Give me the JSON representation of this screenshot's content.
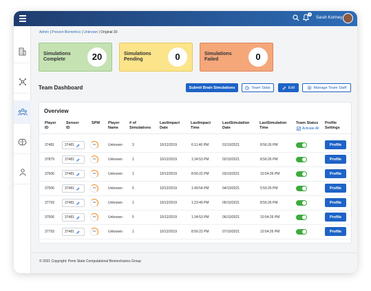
{
  "topbar": {
    "user_name": "Sarah Kortney",
    "notification_count": "5"
  },
  "sidebar": {
    "items": [
      {
        "icon": "building-icon"
      },
      {
        "icon": "network-icon"
      },
      {
        "icon": "team-icon",
        "active": true
      },
      {
        "icon": "brain-icon"
      },
      {
        "icon": "user-icon"
      }
    ]
  },
  "breadcrumb": {
    "items": [
      "Admin",
      "Prevent Biometrics",
      "Unknown",
      "Original 30"
    ],
    "separator": "|"
  },
  "summary": {
    "complete": {
      "label_line1": "Simulations",
      "label_line2": "Complete",
      "value": "20",
      "color": "#c5e2b3",
      "border": "#9cc98a"
    },
    "pending": {
      "label_line1": "Simulations",
      "label_line2": "Pending",
      "value": "0",
      "color": "#fce48a",
      "border": "#e8c85c"
    },
    "failed": {
      "label_line1": "Simulations",
      "label_line2": "Failed",
      "value": "0",
      "color": "#f5a77a",
      "border": "#e0845a"
    }
  },
  "dashboard": {
    "title": "Team Dashboard",
    "submit_label": "Submit Brain Simulations",
    "team_stats_label": "Team Stats",
    "edit_label": "Edit",
    "manage_staff_label": "Manage Team Staff"
  },
  "overview": {
    "title": "Overview",
    "columns": {
      "player_id": [
        "Player",
        "ID"
      ],
      "sensor_id": [
        "Sensor",
        "ID"
      ],
      "spm": [
        "SPM"
      ],
      "player_name": [
        "Player",
        "Name"
      ],
      "num_sims": [
        "# of",
        "Simulations"
      ],
      "last_impact_date": [
        "LastImpact",
        "Date"
      ],
      "last_impact_time": [
        "LastImpact",
        "Time"
      ],
      "last_sim_date": [
        "LastSimulation",
        "Date"
      ],
      "last_sim_time": [
        "LastSimulation",
        "Time"
      ],
      "team_status": [
        "Team Status"
      ],
      "profile_settings": [
        "Profile",
        "Settings"
      ]
    },
    "activate_all_label": "Activate All",
    "rows": [
      {
        "player_id": "37481",
        "sensor": "37481",
        "spm": "0%",
        "name": "Unknown",
        "sims": "3",
        "impact_date": "10/12/2019",
        "impact_time": "6:11:40 PM",
        "sim_date": "01/10/2021",
        "sim_time": "8:56:26 PM",
        "profile": "Profile"
      },
      {
        "player_id": "37879",
        "sensor": "37481",
        "spm": "0%",
        "name": "Unknown",
        "sims": "1",
        "impact_date": "10/12/2019",
        "impact_time": "1:34:53 PM",
        "sim_date": "02/10/2021",
        "sim_time": "8:56:26 PM",
        "profile": "Profile"
      },
      {
        "player_id": "37506",
        "sensor": "37481",
        "spm": "0%",
        "name": "Unknown",
        "sims": "1",
        "impact_date": "10/12/2019",
        "impact_time": "8:56:22 PM",
        "sim_date": "03/10/2021",
        "sim_time": "10:54:26 PM",
        "profile": "Profile"
      },
      {
        "player_id": "37506",
        "sensor": "37481",
        "spm": "0%",
        "name": "Unknown",
        "sims": "5",
        "impact_date": "10/12/2019",
        "impact_time": "1:49:54 PM",
        "sim_date": "04/10/2021",
        "sim_time": "5:50:26 PM",
        "profile": "Profile"
      },
      {
        "player_id": "37793",
        "sensor": "37481",
        "spm": "0%",
        "name": "Unknown",
        "sims": "1",
        "impact_date": "10/12/2019",
        "impact_time": "1:23:49 PM",
        "sim_date": "05/10/2021",
        "sim_time": "8:56:26 PM",
        "profile": "Profile"
      },
      {
        "player_id": "37506",
        "sensor": "37481",
        "spm": "0%",
        "name": "Unknown",
        "sims": "5",
        "impact_date": "10/12/2019",
        "impact_time": "1:34:53 PM",
        "sim_date": "06/10/2021",
        "sim_time": "10:54:26 PM",
        "profile": "Profile"
      },
      {
        "player_id": "37793",
        "sensor": "37481",
        "spm": "0%",
        "name": "Unknown",
        "sims": "1",
        "impact_date": "10/12/2019",
        "impact_time": "8:56:22 PM",
        "sim_date": "07/10/2021",
        "sim_time": "10:54:26 PM",
        "profile": "Profile"
      }
    ]
  },
  "footer": {
    "copyright": "© 2021 Copyright: Penn State Computational Biomechanics Group"
  },
  "colors": {
    "primary": "#1e63c6",
    "toggle_on": "#3dab3d",
    "spm_ring": "#f08a1c"
  }
}
